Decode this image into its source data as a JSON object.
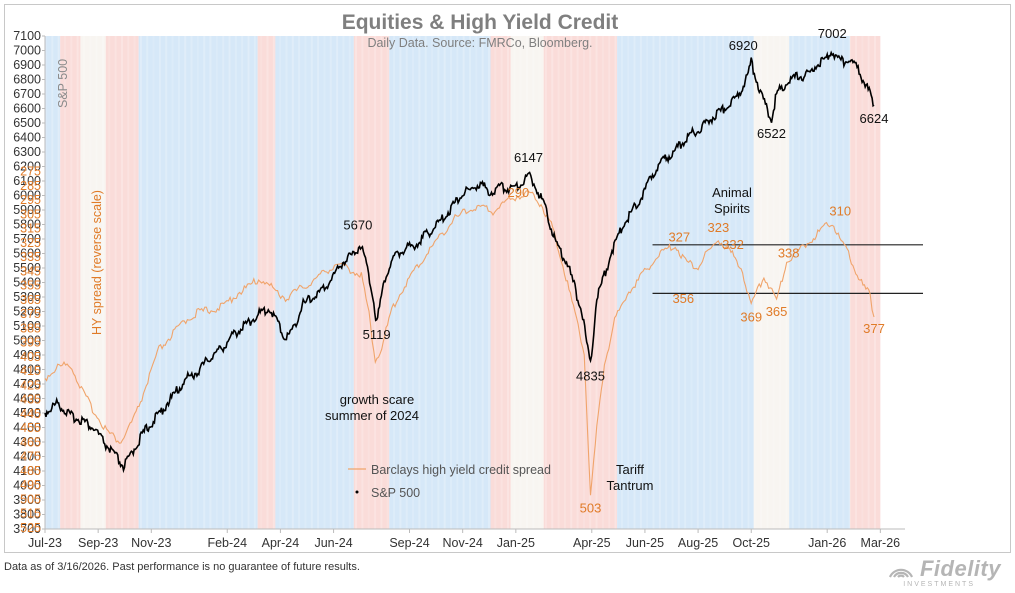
{
  "chart_data": {
    "type": "line",
    "title": "Equities & High Yield Credit",
    "subtitle": "Daily Data.  Source: FMRCo, Bloomberg.",
    "ylabel_left": "S&P 500",
    "ylabel_hy": "HY spread (reverse scale)",
    "ylim": [
      3700,
      7100
    ],
    "yticks": [
      3700,
      3800,
      3900,
      4000,
      4100,
      4200,
      4300,
      4400,
      4500,
      4600,
      4700,
      4800,
      4900,
      5000,
      5100,
      5200,
      5300,
      5400,
      5500,
      5600,
      5700,
      5800,
      5900,
      6000,
      6100,
      6200,
      6300,
      6400,
      6500,
      6600,
      6700,
      6800,
      6900,
      7000,
      7100
    ],
    "hy_ylim_reversed": [
      275,
      525
    ],
    "hy_ticks": [
      275,
      285,
      295,
      305,
      315,
      325,
      335,
      345,
      355,
      365,
      375,
      385,
      395,
      405,
      415,
      425,
      435,
      445,
      455,
      465,
      475,
      485,
      495,
      505,
      515,
      525
    ],
    "x_tick_labels": [
      "Jul-23",
      "Sep-23",
      "Nov-23",
      "Feb-24",
      "Apr-24",
      "Jun-24",
      "Sep-24",
      "Nov-24",
      "Jan-25",
      "Apr-25",
      "Jun-25",
      "Aug-25",
      "Oct-25",
      "Jan-26",
      "Mar-26"
    ],
    "x_tick_months": [
      0,
      2.1,
      4.2,
      7.2,
      9.3,
      11.4,
      14.4,
      16.5,
      18.6,
      21.6,
      23.7,
      25.8,
      27.9,
      30.9,
      33.0
    ],
    "series": [
      {
        "name": "S&P 500",
        "color": "#000000",
        "points": [
          [
            0,
            4500
          ],
          [
            0.5,
            4570
          ],
          [
            1,
            4480
          ],
          [
            1.5,
            4450
          ],
          [
            2,
            4380
          ],
          [
            2.4,
            4280
          ],
          [
            2.8,
            4200
          ],
          [
            3.1,
            4130
          ],
          [
            3.3,
            4180
          ],
          [
            3.6,
            4280
          ],
          [
            4,
            4390
          ],
          [
            4.4,
            4470
          ],
          [
            4.8,
            4560
          ],
          [
            5.2,
            4650
          ],
          [
            5.6,
            4740
          ],
          [
            6,
            4780
          ],
          [
            6.5,
            4880
          ],
          [
            7,
            4950
          ],
          [
            7.5,
            5050
          ],
          [
            8,
            5120
          ],
          [
            8.5,
            5190
          ],
          [
            8.9,
            5220
          ],
          [
            9.2,
            5120
          ],
          [
            9.5,
            5010
          ],
          [
            9.8,
            5080
          ],
          [
            10.2,
            5250
          ],
          [
            10.6,
            5300
          ],
          [
            11,
            5350
          ],
          [
            11.4,
            5450
          ],
          [
            11.8,
            5550
          ],
          [
            12.2,
            5600
          ],
          [
            12.5,
            5670
          ],
          [
            12.7,
            5520
          ],
          [
            12.95,
            5320
          ],
          [
            13.1,
            5119
          ],
          [
            13.4,
            5420
          ],
          [
            13.8,
            5580
          ],
          [
            14.2,
            5630
          ],
          [
            14.6,
            5660
          ],
          [
            15,
            5720
          ],
          [
            15.5,
            5800
          ],
          [
            16,
            5900
          ],
          [
            16.4,
            6000
          ],
          [
            16.8,
            6040
          ],
          [
            17.2,
            6080
          ],
          [
            17.6,
            6020
          ],
          [
            18,
            6060
          ],
          [
            18.4,
            6050
          ],
          [
            18.8,
            6080
          ],
          [
            19.1,
            6147
          ],
          [
            19.4,
            6060
          ],
          [
            19.7,
            5950
          ],
          [
            20,
            5780
          ],
          [
            20.3,
            5620
          ],
          [
            20.6,
            5550
          ],
          [
            20.9,
            5380
          ],
          [
            21.2,
            5200
          ],
          [
            21.4,
            4980
          ],
          [
            21.55,
            4835
          ],
          [
            21.8,
            5300
          ],
          [
            22.1,
            5450
          ],
          [
            22.4,
            5620
          ],
          [
            22.8,
            5780
          ],
          [
            23.2,
            5900
          ],
          [
            23.6,
            6000
          ],
          [
            24,
            6150
          ],
          [
            24.5,
            6250
          ],
          [
            25,
            6330
          ],
          [
            25.5,
            6420
          ],
          [
            26,
            6480
          ],
          [
            26.5,
            6560
          ],
          [
            27,
            6620
          ],
          [
            27.4,
            6700
          ],
          [
            27.7,
            6800
          ],
          [
            27.9,
            6920
          ],
          [
            28.1,
            6800
          ],
          [
            28.3,
            6700
          ],
          [
            28.5,
            6600
          ],
          [
            28.7,
            6522
          ],
          [
            28.9,
            6700
          ],
          [
            29.3,
            6780
          ],
          [
            29.7,
            6820
          ],
          [
            30.1,
            6830
          ],
          [
            30.5,
            6900
          ],
          [
            30.9,
            6940
          ],
          [
            31.1,
            7002
          ],
          [
            31.4,
            6920
          ],
          [
            31.8,
            6940
          ],
          [
            32.2,
            6850
          ],
          [
            32.4,
            6760
          ],
          [
            32.6,
            6700
          ],
          [
            32.75,
            6624
          ]
        ]
      },
      {
        "name": "Barclays high yield credit spread",
        "color": "#f0a46b",
        "points": [
          [
            0,
            420
          ],
          [
            0.5,
            412
          ],
          [
            1,
            410
          ],
          [
            1.5,
            430
          ],
          [
            2,
            445
          ],
          [
            2.5,
            458
          ],
          [
            3,
            465
          ],
          [
            3.3,
            455
          ],
          [
            3.6,
            445
          ],
          [
            4,
            425
          ],
          [
            4.5,
            400
          ],
          [
            5,
            390
          ],
          [
            5.5,
            380
          ],
          [
            6,
            374
          ],
          [
            6.5,
            372
          ],
          [
            7,
            370
          ],
          [
            7.5,
            362
          ],
          [
            8,
            356
          ],
          [
            8.5,
            350
          ],
          [
            9,
            357
          ],
          [
            9.5,
            364
          ],
          [
            10,
            358
          ],
          [
            10.5,
            353
          ],
          [
            11,
            346
          ],
          [
            11.5,
            340
          ],
          [
            12,
            343
          ],
          [
            12.5,
            348
          ],
          [
            12.8,
            375
          ],
          [
            13.05,
            408
          ],
          [
            13.3,
            398
          ],
          [
            13.7,
            372
          ],
          [
            14.2,
            355
          ],
          [
            14.7,
            342
          ],
          [
            15.2,
            330
          ],
          [
            15.7,
            318
          ],
          [
            16.2,
            308
          ],
          [
            16.7,
            302
          ],
          [
            17.2,
            300
          ],
          [
            17.7,
            303
          ],
          [
            18.2,
            296
          ],
          [
            18.7,
            292
          ],
          [
            19.2,
            290
          ],
          [
            19.6,
            298
          ],
          [
            20,
            312
          ],
          [
            20.4,
            336
          ],
          [
            20.7,
            358
          ],
          [
            21,
            378
          ],
          [
            21.3,
            402
          ],
          [
            21.55,
            503
          ],
          [
            21.8,
            455
          ],
          [
            22.1,
            410
          ],
          [
            22.5,
            380
          ],
          [
            23,
            360
          ],
          [
            23.5,
            350
          ],
          [
            24,
            338
          ],
          [
            24.5,
            330
          ],
          [
            24.9,
            327
          ],
          [
            25.3,
            338
          ],
          [
            25.8,
            342
          ],
          [
            26.2,
            331
          ],
          [
            26.6,
            323
          ],
          [
            27.1,
            332
          ],
          [
            27.5,
            342
          ],
          [
            27.9,
            369
          ],
          [
            28.4,
            348
          ],
          [
            28.9,
            365
          ],
          [
            29.3,
            338
          ],
          [
            29.8,
            330
          ],
          [
            30.3,
            322
          ],
          [
            30.7,
            315
          ],
          [
            31.1,
            310
          ],
          [
            31.4,
            322
          ],
          [
            31.8,
            335
          ],
          [
            32.2,
            352
          ],
          [
            32.6,
            362
          ],
          [
            32.75,
            377
          ]
        ]
      }
    ],
    "legend": [
      "Barclays high yield credit spread",
      "S&P 500"
    ],
    "annotations": {
      "sp": [
        "5670",
        "5119",
        "6147",
        "4835",
        "6920",
        "6522",
        "7002",
        "6624"
      ],
      "hy": [
        "290",
        "503",
        "327",
        "323",
        "332",
        "338",
        "310",
        "356",
        "369",
        "365",
        "377"
      ],
      "text": {
        "growth_scare_1": "growth scare",
        "growth_scare_2": "summer of 2024",
        "tariff_1": "Tariff",
        "tariff_2": "Tantrum",
        "animal_1": "Animal",
        "animal_2": "Spirits"
      }
    },
    "reference_lines_hy": [
      325,
      360
    ],
    "background_regime_bands": [
      {
        "from": 0,
        "to": 0.6,
        "regime": "risk-on"
      },
      {
        "from": 0.6,
        "to": 1.4,
        "regime": "risk-off"
      },
      {
        "from": 1.4,
        "to": 2.4,
        "regime": "neutral"
      },
      {
        "from": 2.4,
        "to": 3.7,
        "regime": "risk-off"
      },
      {
        "from": 3.7,
        "to": 6.5,
        "regime": "risk-on"
      },
      {
        "from": 6.5,
        "to": 8.4,
        "regime": "risk-on"
      },
      {
        "from": 8.4,
        "to": 9.1,
        "regime": "risk-off"
      },
      {
        "from": 9.1,
        "to": 12.2,
        "regime": "risk-on"
      },
      {
        "from": 12.2,
        "to": 13.6,
        "regime": "risk-off"
      },
      {
        "from": 13.6,
        "to": 17.6,
        "regime": "risk-on"
      },
      {
        "from": 17.6,
        "to": 18.4,
        "regime": "risk-off"
      },
      {
        "from": 18.4,
        "to": 19.7,
        "regime": "neutral"
      },
      {
        "from": 19.7,
        "to": 22.6,
        "regime": "risk-off"
      },
      {
        "from": 22.6,
        "to": 28.0,
        "regime": "risk-on"
      },
      {
        "from": 28.0,
        "to": 29.4,
        "regime": "neutral"
      },
      {
        "from": 29.4,
        "to": 31.8,
        "regime": "risk-on"
      },
      {
        "from": 31.8,
        "to": 33.0,
        "regime": "risk-off"
      }
    ]
  },
  "footnote": "Data as of 3/16/2026. Past performance is no guarantee of future results.",
  "logo": "Fidelity",
  "logo_sub": "INVESTMENTS",
  "colors": {
    "sp": "#000000",
    "hy": "#f0a46b",
    "hy_text": "#e07b28",
    "risk_on": "#cfe4f7",
    "risk_off": "#f9d6d2",
    "neutral": "#f7f3ef"
  }
}
